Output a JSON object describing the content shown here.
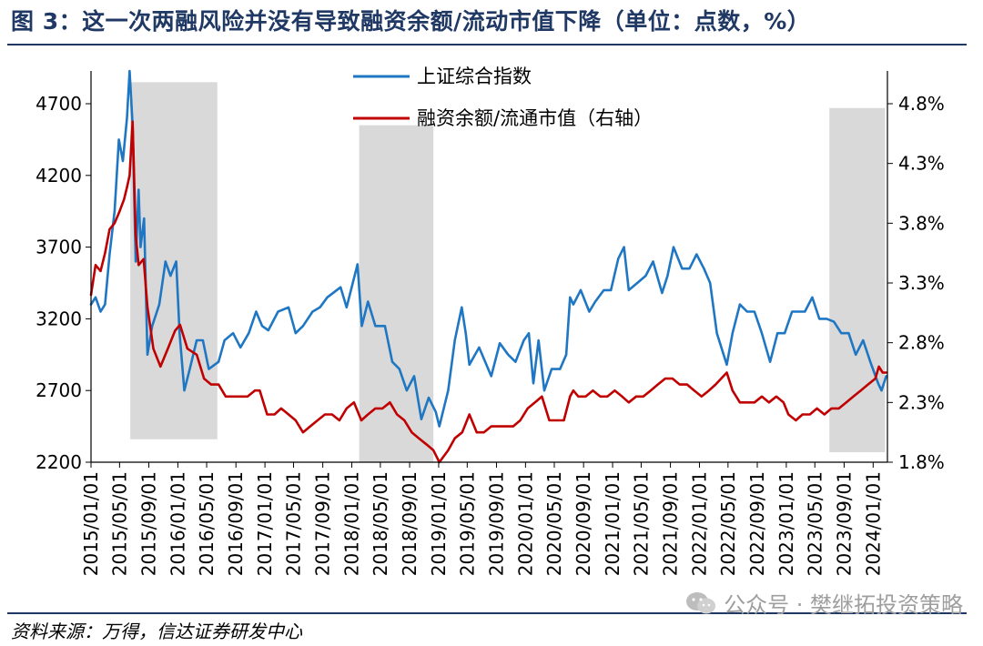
{
  "header": {
    "title": "图 3：这一次两融风险并没有导致融资余额/流动市值下降（单位：点数，%）"
  },
  "footer": {
    "source": "资料来源：万得，信达证券研发中心",
    "watermark": "公众号 · 樊继拓投资策略"
  },
  "chart_data": {
    "type": "line",
    "title": "图 3：这一次两融风险并没有导致融资余额/流动市值下降（单位：点数，%）",
    "x_tick_labels": [
      "2015/01/01",
      "2015/05/01",
      "2015/09/01",
      "2016/01/01",
      "2016/05/01",
      "2016/09/01",
      "2017/01/01",
      "2017/05/01",
      "2017/09/01",
      "2018/01/01",
      "2018/05/01",
      "2018/09/01",
      "2019/01/01",
      "2019/05/01",
      "2019/09/01",
      "2020/01/01",
      "2020/05/01",
      "2020/09/01",
      "2021/01/01",
      "2021/05/01",
      "2021/09/01",
      "2022/01/01",
      "2022/05/01",
      "2022/09/01",
      "2023/01/01",
      "2023/05/01",
      "2023/09/01",
      "2024/01/01"
    ],
    "left_axis": {
      "ticks": [
        "2200",
        "2700",
        "3200",
        "3700",
        "4200",
        "4700"
      ],
      "ylim": [
        2200,
        4700
      ]
    },
    "right_axis": {
      "ticks": [
        "1.8%",
        "2.3%",
        "2.8%",
        "3.3%",
        "3.8%",
        "4.3%",
        "4.8%"
      ],
      "ylim": [
        1.8,
        4.8
      ],
      "unit": "%"
    },
    "legend": {
      "placement": "top-center"
    },
    "grid": false,
    "shaded_periods": [
      {
        "start": "2015/06/15",
        "end": "2016/06/15",
        "from_value": 4850,
        "to_value": 2360
      },
      {
        "start": "2018/02/01",
        "end": "2018/12/10",
        "from_value": 4550,
        "to_value": 2180
      },
      {
        "start": "2023/07/01",
        "end": "2024/02/20",
        "from_value": 4670,
        "to_value": 2270
      }
    ],
    "series": [
      {
        "name": "上证综合指数",
        "axis": "left",
        "color": "#1f77c3",
        "points": [
          [
            "2015/01/01",
            3300
          ],
          [
            "2015/01/20",
            3350
          ],
          [
            "2015/02/10",
            3250
          ],
          [
            "2015/03/01",
            3300
          ],
          [
            "2015/03/20",
            3650
          ],
          [
            "2015/04/10",
            3950
          ],
          [
            "2015/04/28",
            4450
          ],
          [
            "2015/05/15",
            4300
          ],
          [
            "2015/06/01",
            4600
          ],
          [
            "2015/06/12",
            5150
          ],
          [
            "2015/06/25",
            4550
          ],
          [
            "2015/07/08",
            3600
          ],
          [
            "2015/07/20",
            4100
          ],
          [
            "2015/07/28",
            3700
          ],
          [
            "2015/08/12",
            3900
          ],
          [
            "2015/08/26",
            2950
          ],
          [
            "2015/09/15",
            3150
          ],
          [
            "2015/10/15",
            3300
          ],
          [
            "2015/11/10",
            3600
          ],
          [
            "2015/12/01",
            3500
          ],
          [
            "2015/12/25",
            3600
          ],
          [
            "2016/01/08",
            3100
          ],
          [
            "2016/01/28",
            2700
          ],
          [
            "2016/02/20",
            2850
          ],
          [
            "2016/03/20",
            3050
          ],
          [
            "2016/04/15",
            3050
          ],
          [
            "2016/05/10",
            2850
          ],
          [
            "2016/06/20",
            2900
          ],
          [
            "2016/07/15",
            3050
          ],
          [
            "2016/08/20",
            3100
          ],
          [
            "2016/09/20",
            3000
          ],
          [
            "2016/10/25",
            3100
          ],
          [
            "2016/11/25",
            3250
          ],
          [
            "2016/12/20",
            3150
          ],
          [
            "2017/01/15",
            3120
          ],
          [
            "2017/02/25",
            3250
          ],
          [
            "2017/04/10",
            3280
          ],
          [
            "2017/05/10",
            3100
          ],
          [
            "2017/06/10",
            3150
          ],
          [
            "2017/07/20",
            3250
          ],
          [
            "2017/08/20",
            3280
          ],
          [
            "2017/09/20",
            3350
          ],
          [
            "2017/11/15",
            3420
          ],
          [
            "2017/12/10",
            3280
          ],
          [
            "2018/01/25",
            3580
          ],
          [
            "2018/02/12",
            3150
          ],
          [
            "2018/03/10",
            3320
          ],
          [
            "2018/04/10",
            3150
          ],
          [
            "2018/05/20",
            3150
          ],
          [
            "2018/06/20",
            2900
          ],
          [
            "2018/07/20",
            2850
          ],
          [
            "2018/08/20",
            2700
          ],
          [
            "2018/09/20",
            2800
          ],
          [
            "2018/10/20",
            2500
          ],
          [
            "2018/11/20",
            2650
          ],
          [
            "2018/12/20",
            2550
          ],
          [
            "2019/01/04",
            2450
          ],
          [
            "2019/02/10",
            2700
          ],
          [
            "2019/03/10",
            3050
          ],
          [
            "2019/04/08",
            3280
          ],
          [
            "2019/04/25",
            3100
          ],
          [
            "2019/05/10",
            2880
          ],
          [
            "2019/06/20",
            3000
          ],
          [
            "2019/08/10",
            2800
          ],
          [
            "2019/09/15",
            3030
          ],
          [
            "2019/10/20",
            2950
          ],
          [
            "2019/11/20",
            2900
          ],
          [
            "2019/12/25",
            3050
          ],
          [
            "2020/01/15",
            3100
          ],
          [
            "2020/02/03",
            2750
          ],
          [
            "2020/02/25",
            3050
          ],
          [
            "2020/03/20",
            2700
          ],
          [
            "2020/04/20",
            2850
          ],
          [
            "2020/05/25",
            2850
          ],
          [
            "2020/06/20",
            2950
          ],
          [
            "2020/07/06",
            3350
          ],
          [
            "2020/07/20",
            3300
          ],
          [
            "2020/08/20",
            3400
          ],
          [
            "2020/09/25",
            3250
          ],
          [
            "2020/10/20",
            3320
          ],
          [
            "2020/11/25",
            3400
          ],
          [
            "2020/12/25",
            3400
          ],
          [
            "2021/01/25",
            3620
          ],
          [
            "2021/02/18",
            3700
          ],
          [
            "2021/03/10",
            3400
          ],
          [
            "2021/04/15",
            3450
          ],
          [
            "2021/05/20",
            3500
          ],
          [
            "2021/06/20",
            3600
          ],
          [
            "2021/07/28",
            3380
          ],
          [
            "2021/08/20",
            3500
          ],
          [
            "2021/09/14",
            3700
          ],
          [
            "2021/10/20",
            3550
          ],
          [
            "2021/11/20",
            3550
          ],
          [
            "2021/12/20",
            3650
          ],
          [
            "2022/01/20",
            3550
          ],
          [
            "2022/02/15",
            3450
          ],
          [
            "2022/03/15",
            3100
          ],
          [
            "2022/04/26",
            2880
          ],
          [
            "2022/05/20",
            3100
          ],
          [
            "2022/06/20",
            3300
          ],
          [
            "2022/07/20",
            3250
          ],
          [
            "2022/08/20",
            3250
          ],
          [
            "2022/09/20",
            3100
          ],
          [
            "2022/10/25",
            2900
          ],
          [
            "2022/11/25",
            3100
          ],
          [
            "2022/12/25",
            3100
          ],
          [
            "2023/01/25",
            3250
          ],
          [
            "2023/02/20",
            3250
          ],
          [
            "2023/03/20",
            3250
          ],
          [
            "2023/04/20",
            3350
          ],
          [
            "2023/05/20",
            3200
          ],
          [
            "2023/06/20",
            3200
          ],
          [
            "2023/07/20",
            3180
          ],
          [
            "2023/08/20",
            3100
          ],
          [
            "2023/09/20",
            3100
          ],
          [
            "2023/10/20",
            2950
          ],
          [
            "2023/11/20",
            3050
          ],
          [
            "2023/12/20",
            2900
          ],
          [
            "2024/01/22",
            2750
          ],
          [
            "2024/02/05",
            2700
          ],
          [
            "2024/02/25",
            2800
          ]
        ]
      },
      {
        "name": "融资余额/流通市值（右轴）",
        "axis": "right",
        "color": "#c00000",
        "points": [
          [
            "2015/01/01",
            3.2
          ],
          [
            "2015/01/20",
            3.45
          ],
          [
            "2015/02/10",
            3.4
          ],
          [
            "2015/03/01",
            3.55
          ],
          [
            "2015/03/20",
            3.75
          ],
          [
            "2015/04/10",
            3.8
          ],
          [
            "2015/05/01",
            3.9
          ],
          [
            "2015/05/20",
            4.0
          ],
          [
            "2015/06/01",
            4.1
          ],
          [
            "2015/06/12",
            4.2
          ],
          [
            "2015/06/25",
            4.65
          ],
          [
            "2015/07/08",
            3.7
          ],
          [
            "2015/07/20",
            3.45
          ],
          [
            "2015/08/10",
            3.5
          ],
          [
            "2015/08/26",
            3.1
          ],
          [
            "2015/09/20",
            2.75
          ],
          [
            "2015/10/20",
            2.6
          ],
          [
            "2015/11/20",
            2.75
          ],
          [
            "2015/12/20",
            2.9
          ],
          [
            "2016/01/10",
            2.95
          ],
          [
            "2016/02/10",
            2.75
          ],
          [
            "2016/03/20",
            2.7
          ],
          [
            "2016/04/20",
            2.5
          ],
          [
            "2016/05/20",
            2.45
          ],
          [
            "2016/06/20",
            2.45
          ],
          [
            "2016/07/20",
            2.35
          ],
          [
            "2016/08/20",
            2.35
          ],
          [
            "2016/09/20",
            2.35
          ],
          [
            "2016/10/20",
            2.35
          ],
          [
            "2016/11/20",
            2.4
          ],
          [
            "2016/12/10",
            2.4
          ],
          [
            "2017/01/10",
            2.2
          ],
          [
            "2017/02/10",
            2.2
          ],
          [
            "2017/03/10",
            2.25
          ],
          [
            "2017/04/10",
            2.2
          ],
          [
            "2017/05/10",
            2.15
          ],
          [
            "2017/06/10",
            2.05
          ],
          [
            "2017/07/10",
            2.1
          ],
          [
            "2017/08/10",
            2.15
          ],
          [
            "2017/09/10",
            2.2
          ],
          [
            "2017/10/10",
            2.2
          ],
          [
            "2017/11/10",
            2.15
          ],
          [
            "2017/12/10",
            2.25
          ],
          [
            "2018/01/10",
            2.3
          ],
          [
            "2018/02/10",
            2.15
          ],
          [
            "2018/03/10",
            2.2
          ],
          [
            "2018/04/10",
            2.25
          ],
          [
            "2018/05/10",
            2.25
          ],
          [
            "2018/06/10",
            2.3
          ],
          [
            "2018/07/10",
            2.2
          ],
          [
            "2018/08/10",
            2.15
          ],
          [
            "2018/09/10",
            2.05
          ],
          [
            "2018/10/10",
            2.0
          ],
          [
            "2018/11/10",
            1.95
          ],
          [
            "2018/12/10",
            1.9
          ],
          [
            "2019/01/04",
            1.8
          ],
          [
            "2019/02/10",
            1.9
          ],
          [
            "2019/03/10",
            2.0
          ],
          [
            "2019/04/10",
            2.05
          ],
          [
            "2019/05/10",
            2.2
          ],
          [
            "2019/06/10",
            2.05
          ],
          [
            "2019/07/10",
            2.05
          ],
          [
            "2019/08/10",
            2.1
          ],
          [
            "2019/09/10",
            2.1
          ],
          [
            "2019/10/10",
            2.1
          ],
          [
            "2019/11/10",
            2.1
          ],
          [
            "2019/12/10",
            2.15
          ],
          [
            "2020/01/10",
            2.25
          ],
          [
            "2020/02/10",
            2.3
          ],
          [
            "2020/03/10",
            2.35
          ],
          [
            "2020/04/10",
            2.15
          ],
          [
            "2020/05/10",
            2.15
          ],
          [
            "2020/06/10",
            2.15
          ],
          [
            "2020/07/06",
            2.35
          ],
          [
            "2020/07/20",
            2.4
          ],
          [
            "2020/08/10",
            2.35
          ],
          [
            "2020/09/10",
            2.35
          ],
          [
            "2020/10/10",
            2.4
          ],
          [
            "2020/11/10",
            2.35
          ],
          [
            "2020/12/10",
            2.35
          ],
          [
            "2021/01/10",
            2.4
          ],
          [
            "2021/02/10",
            2.35
          ],
          [
            "2021/03/10",
            2.3
          ],
          [
            "2021/04/10",
            2.35
          ],
          [
            "2021/05/10",
            2.35
          ],
          [
            "2021/06/10",
            2.4
          ],
          [
            "2021/07/10",
            2.45
          ],
          [
            "2021/08/10",
            2.5
          ],
          [
            "2021/09/10",
            2.5
          ],
          [
            "2021/10/10",
            2.45
          ],
          [
            "2021/11/10",
            2.45
          ],
          [
            "2021/12/10",
            2.4
          ],
          [
            "2022/01/10",
            2.35
          ],
          [
            "2022/02/10",
            2.4
          ],
          [
            "2022/03/10",
            2.45
          ],
          [
            "2022/04/26",
            2.55
          ],
          [
            "2022/05/20",
            2.4
          ],
          [
            "2022/06/20",
            2.3
          ],
          [
            "2022/07/20",
            2.3
          ],
          [
            "2022/08/20",
            2.3
          ],
          [
            "2022/09/20",
            2.35
          ],
          [
            "2022/10/20",
            2.3
          ],
          [
            "2022/11/20",
            2.35
          ],
          [
            "2022/12/20",
            2.3
          ],
          [
            "2023/01/10",
            2.2
          ],
          [
            "2023/02/10",
            2.15
          ],
          [
            "2023/03/10",
            2.2
          ],
          [
            "2023/04/10",
            2.2
          ],
          [
            "2023/05/10",
            2.25
          ],
          [
            "2023/06/10",
            2.2
          ],
          [
            "2023/07/10",
            2.25
          ],
          [
            "2023/08/10",
            2.25
          ],
          [
            "2023/09/10",
            2.3
          ],
          [
            "2023/10/10",
            2.35
          ],
          [
            "2023/11/10",
            2.4
          ],
          [
            "2023/12/10",
            2.45
          ],
          [
            "2024/01/10",
            2.5
          ],
          [
            "2024/01/25",
            2.6
          ],
          [
            "2024/02/10",
            2.55
          ],
          [
            "2024/02/25",
            2.55
          ]
        ]
      }
    ]
  }
}
